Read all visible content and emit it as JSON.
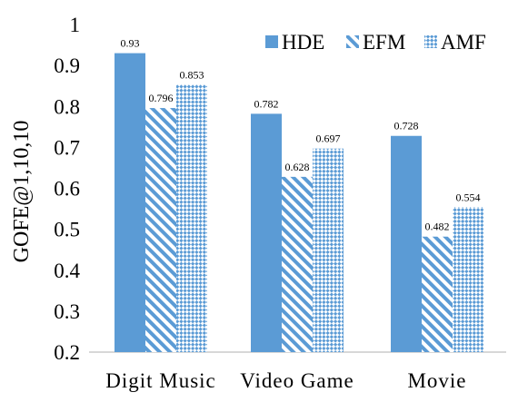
{
  "chart_data": {
    "type": "bar",
    "ylabel": "GOFE@1,10,10",
    "xlabel": "",
    "ylim": [
      0.2,
      1.0
    ],
    "yticks": [
      0.2,
      0.3,
      0.4,
      0.5,
      0.6,
      0.7,
      0.8,
      0.9,
      1.0
    ],
    "ytick_labels": [
      "0.2",
      "0.3",
      "0.4",
      "0.5",
      "0.6",
      "0.7",
      "0.8",
      "0.9",
      "1"
    ],
    "categories": [
      "Digit Music",
      "Video Game",
      "Movie"
    ],
    "series": [
      {
        "name": "HDE",
        "values": [
          0.93,
          0.782,
          0.728
        ],
        "labels": [
          "0.93",
          "0.782",
          "0.728"
        ],
        "style": "solid",
        "color": "#5b9bd5"
      },
      {
        "name": "EFM",
        "values": [
          0.796,
          0.628,
          0.482
        ],
        "labels": [
          "0.796",
          "0.628",
          "0.482"
        ],
        "style": "diagonal-hatch",
        "color": "#5b9bd5"
      },
      {
        "name": "AMF",
        "values": [
          0.853,
          0.697,
          0.554
        ],
        "labels": [
          "0.853",
          "0.697",
          "0.554"
        ],
        "style": "checker-hatch",
        "color": "#5b9bd5"
      }
    ],
    "legend_position": "top-right",
    "grid": false
  }
}
